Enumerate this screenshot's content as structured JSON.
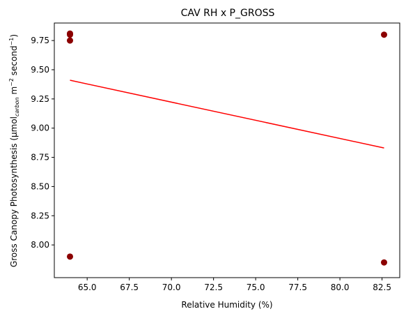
{
  "chart_data": {
    "type": "scatter",
    "title": "CAV RH x P_GROSS",
    "xlabel": "Relative Humidity (%)",
    "ylabel": {
      "prefix": "Gross Canopy Photosynthesis (μmol",
      "subscript": "carbon",
      "middle": " m",
      "sup1": "−2",
      "middle2": " second",
      "sup2": "−1",
      "suffix": ")"
    },
    "xlim": [
      63.05,
      83.55
    ],
    "ylim": [
      7.72,
      9.9
    ],
    "xticks": [
      "65.0",
      "67.5",
      "70.0",
      "72.5",
      "75.0",
      "77.5",
      "80.0",
      "82.5"
    ],
    "yticks": [
      "8.00",
      "8.25",
      "8.50",
      "8.75",
      "9.00",
      "9.25",
      "9.50",
      "9.75"
    ],
    "grid": false,
    "points": [
      {
        "x": 63.98,
        "y": 9.8
      },
      {
        "x": 63.98,
        "y": 9.81
      },
      {
        "x": 63.98,
        "y": 9.75
      },
      {
        "x": 63.98,
        "y": 7.9
      },
      {
        "x": 82.62,
        "y": 9.8
      },
      {
        "x": 82.62,
        "y": 7.85
      }
    ],
    "trendline": {
      "x": [
        63.98,
        82.62
      ],
      "y": [
        9.41,
        8.83
      ]
    },
    "colors": {
      "points": "#8b0000",
      "trendline": "#ff0000",
      "axes": "#000000"
    }
  }
}
